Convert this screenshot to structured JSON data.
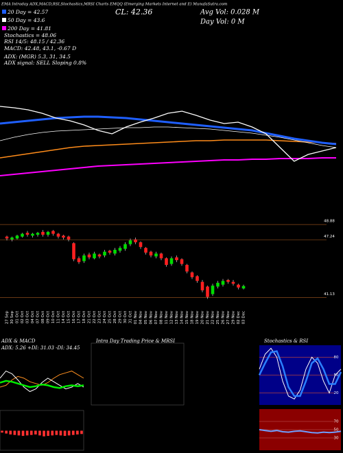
{
  "header": {
    "site": "EMA Intraday ADX,MACD,RSI,Stochastics,MRSI Charts EMQQ (Emerging Markets Internet and E) MunafaSutra.com",
    "ema20": "20 Day = 42.57",
    "ema50": "50 Day = 43.6",
    "ema200": "200 Day = 41.81",
    "stoch": "Stochastics = 48.06",
    "rsi": "RSI 14/5: 48.15 / 42.36",
    "macd": "MACD: 42.48, 43.1, -0.67 D",
    "adx": "ADX:        (MGR) 5.3, 31, 34.5",
    "adx_signal": "ADX  signal: SELL Sloping 0.8%",
    "close": "CL: 42.36",
    "avg_vol": "Avg Vol: 0.028  M",
    "day_vol": "Day Vol: 0   M"
  },
  "chart_data": [
    {
      "type": "line",
      "categories": [
        null,
        null,
        null,
        null,
        null,
        null,
        null,
        null,
        null,
        null,
        null,
        null,
        null,
        null,
        null,
        null,
        null,
        null,
        null,
        null,
        null,
        null,
        null,
        null,
        null
      ],
      "ylim": [
        38,
        52
      ],
      "series": [
        {
          "color": "#ff00ff",
          "width": 2,
          "values": [
            39.4,
            39.6,
            39.8,
            40.0,
            40.2,
            40.4,
            40.6,
            40.8,
            40.9,
            41.0,
            41.1,
            41.2,
            41.3,
            41.4,
            41.5,
            41.6,
            41.7,
            41.7,
            41.8,
            41.8,
            41.9,
            41.9,
            41.9,
            42.0,
            42.0
          ]
        },
        {
          "color": "#ff8c1a",
          "width": 1.6,
          "values": [
            42.0,
            42.3,
            42.6,
            42.9,
            43.2,
            43.5,
            43.7,
            43.8,
            43.9,
            44.0,
            44.1,
            44.2,
            44.3,
            44.4,
            44.5,
            44.5,
            44.6,
            44.6,
            44.6,
            44.6,
            44.5,
            44.4,
            44.3,
            44.2,
            44.1
          ]
        },
        {
          "color": "#ffffff",
          "width": 0.8,
          "values": [
            44.5,
            45.0,
            45.4,
            45.7,
            45.9,
            46.0,
            46.1,
            46.2,
            46.3,
            46.4,
            46.4,
            46.5,
            46.5,
            46.4,
            46.3,
            46.2,
            46.0,
            45.8,
            45.6,
            45.3,
            45.0,
            44.6,
            44.2,
            43.8,
            43.5
          ]
        },
        {
          "color": "#1f5fff",
          "width": 3,
          "values": [
            47.0,
            47.2,
            47.4,
            47.6,
            47.8,
            47.9,
            48.0,
            48.0,
            47.9,
            47.8,
            47.6,
            47.4,
            47.2,
            47.0,
            46.8,
            46.6,
            46.4,
            46.2,
            46.0,
            45.6,
            45.2,
            44.8,
            44.5,
            44.2,
            44.0
          ]
        },
        {
          "color": "#ffffff",
          "width": 1.3,
          "values": [
            49.5,
            49.3,
            49.0,
            48.5,
            47.8,
            47.4,
            46.8,
            46.0,
            45.5,
            46.5,
            47.2,
            47.8,
            48.5,
            48.8,
            48.2,
            47.5,
            47.0,
            47.2,
            46.5,
            45.5,
            43.5,
            41.5,
            42.5,
            43.0,
            43.5
          ]
        }
      ]
    },
    {
      "type": "candlestick",
      "categories": [
        "27 Sep",
        "30 Sep",
        "01 Oct",
        "02 Oct",
        "03 Oct",
        "04 Oct",
        "07 Oct",
        "08 Oct",
        "09 Oct",
        "10 Oct",
        "11 Oct",
        "14 Oct",
        "15 Oct",
        "16 Oct",
        "17 Oct",
        "18 Oct",
        "21 Oct",
        "22 Oct",
        "23 Oct",
        "24 Oct",
        "25 Oct",
        "28 Oct",
        "29 Oct",
        "30 Oct",
        "31 Oct",
        "01 Nov",
        "04 Nov",
        "05 Nov",
        "06 Nov",
        "07 Nov",
        "08 Nov",
        "11 Nov",
        "12 Nov",
        "13 Nov",
        "14 Nov",
        "15 Nov",
        "18 Nov",
        "19 Nov",
        "20 Nov",
        "21 Nov",
        "22 Nov",
        "25 Nov",
        "26 Nov",
        "27 Nov",
        "29 Nov",
        "02 Dec",
        "03 Dec"
      ],
      "open": [
        47.6,
        47.3,
        47.4,
        47.6,
        48.0,
        47.7,
        47.8,
        48.1,
        47.8,
        48.2,
        47.9,
        47.7,
        47.6,
        46.9,
        45.3,
        45.0,
        45.7,
        45.3,
        45.7,
        45.6,
        46.1,
        45.8,
        46.1,
        46.3,
        46.8,
        47.3,
        47.0,
        46.4,
        46.0,
        45.5,
        45.8,
        45.3,
        44.7,
        45.4,
        45.2,
        44.6,
        43.8,
        43.4,
        42.8,
        42.3,
        41.5,
        42.3,
        42.5,
        43.0,
        42.8,
        42.5,
        42.1
      ],
      "high": [
        47.7,
        47.6,
        47.8,
        48.0,
        48.2,
        48.0,
        48.1,
        48.3,
        48.2,
        48.3,
        48.0,
        47.8,
        47.7,
        47.0,
        45.5,
        45.8,
        45.9,
        46.0,
        45.8,
        46.2,
        46.2,
        46.4,
        46.6,
        47.0,
        47.4,
        47.5,
        47.1,
        46.5,
        46.1,
        46.0,
        45.9,
        45.4,
        45.5,
        45.6,
        45.3,
        44.7,
        43.9,
        43.5,
        43.0,
        42.4,
        42.6,
        42.9,
        43.1,
        43.1,
        43.0,
        42.6,
        42.5
      ],
      "low": [
        47.2,
        47.1,
        47.3,
        47.5,
        47.6,
        47.5,
        47.6,
        47.6,
        47.6,
        47.7,
        47.4,
        47.3,
        47.1,
        45.0,
        44.7,
        44.8,
        45.2,
        45.2,
        45.3,
        45.4,
        45.7,
        45.6,
        45.9,
        46.1,
        46.6,
        46.8,
        46.3,
        45.7,
        45.4,
        45.3,
        45.1,
        44.4,
        44.5,
        44.9,
        44.5,
        43.7,
        43.1,
        42.7,
        41.7,
        41.0,
        41.3,
        42.1,
        42.3,
        42.6,
        42.4,
        42.0,
        42.0
      ],
      "close": [
        47.4,
        47.5,
        47.7,
        47.9,
        47.8,
        47.9,
        48.0,
        47.8,
        48.1,
        47.9,
        47.6,
        47.5,
        47.3,
        45.2,
        44.9,
        45.6,
        45.4,
        45.8,
        45.5,
        46.0,
        45.9,
        46.2,
        46.4,
        46.8,
        47.2,
        47.0,
        46.5,
        45.9,
        45.6,
        45.8,
        45.3,
        44.6,
        45.3,
        45.1,
        44.7,
        43.9,
        43.3,
        42.9,
        41.9,
        41.2,
        42.4,
        42.7,
        42.9,
        42.8,
        42.6,
        42.2,
        42.36
      ],
      "up_color": "#00dd00",
      "down_color": "#ff2020",
      "grid_color": "#8b4a1a",
      "ylim": [
        40.3,
        49.4
      ],
      "yticks": [
        48.88,
        47.24,
        41.13
      ]
    },
    {
      "type": "line",
      "title": "ADX & MACD",
      "subtitle": "ADX: 5.26  +DI: 31.03  -DI: 34.45",
      "categories": [
        null,
        null,
        null,
        null,
        null,
        null,
        null,
        null,
        null,
        null,
        null,
        null,
        null,
        null,
        null
      ],
      "ylim": [
        0,
        60
      ],
      "series": [
        {
          "color": "#ff9020",
          "width": 1,
          "values": [
            20,
            22,
            28,
            32,
            30,
            26,
            24,
            22,
            25,
            30,
            34,
            36,
            38,
            34,
            30
          ]
        },
        {
          "color": "#ffffff",
          "width": 1,
          "values": [
            30,
            38,
            35,
            28,
            20,
            15,
            18,
            25,
            30,
            26,
            22,
            18,
            20,
            24,
            20
          ]
        },
        {
          "color": "#00ee00",
          "width": 2.5,
          "values": [
            25,
            27,
            26,
            24,
            22,
            20,
            21,
            23,
            22,
            20,
            19,
            21,
            22,
            21,
            22
          ]
        }
      ]
    },
    {
      "type": "bar",
      "categories": [
        null,
        null,
        null,
        null,
        null,
        null,
        null,
        null,
        null,
        null,
        null,
        null,
        null,
        null,
        null,
        null,
        null,
        null,
        null,
        null
      ],
      "ylim": [
        -2,
        2
      ],
      "color": "#ff3030",
      "values": [
        -0.2,
        -0.3,
        -0.4,
        -0.45,
        -0.5,
        -0.55,
        -0.5,
        -0.45,
        -0.4,
        -0.5,
        -0.6,
        -0.55,
        -0.5,
        -0.45,
        -0.5,
        -0.55,
        -0.5,
        -0.45,
        -0.4,
        -0.35
      ]
    },
    {
      "type": "line",
      "title": "Stochastics & RSI",
      "background": "#000088",
      "categories": [
        null,
        null,
        null,
        null,
        null,
        null,
        null,
        null,
        null,
        null,
        null,
        null,
        null,
        null,
        null
      ],
      "ylim": [
        0,
        100
      ],
      "yticks": [
        80,
        50,
        20
      ],
      "series": [
        {
          "color": "#ffffff",
          "width": 1,
          "values": [
            60,
            85,
            95,
            80,
            40,
            15,
            10,
            25,
            60,
            80,
            70,
            40,
            20,
            50,
            60
          ]
        },
        {
          "color": "#2a7fff",
          "width": 2.5,
          "values": [
            50,
            70,
            88,
            90,
            65,
            30,
            15,
            15,
            40,
            70,
            78,
            60,
            35,
            35,
            55
          ]
        }
      ]
    },
    {
      "type": "line",
      "background": "#8b0000",
      "categories": [
        null,
        null,
        null,
        null,
        null,
        null,
        null,
        null,
        null,
        null,
        null,
        null,
        null,
        null,
        null
      ],
      "ylim": [
        0,
        100
      ],
      "yticks": [
        70,
        50,
        30
      ],
      "series": [
        {
          "color": "#6f9fff",
          "width": 2,
          "values": [
            50,
            48,
            46,
            48,
            45,
            44,
            46,
            47,
            45,
            43,
            42,
            44,
            43,
            44,
            46
          ]
        }
      ]
    },
    {
      "type": "empty",
      "title": "Intra Day Trading Price & MRSI"
    }
  ]
}
